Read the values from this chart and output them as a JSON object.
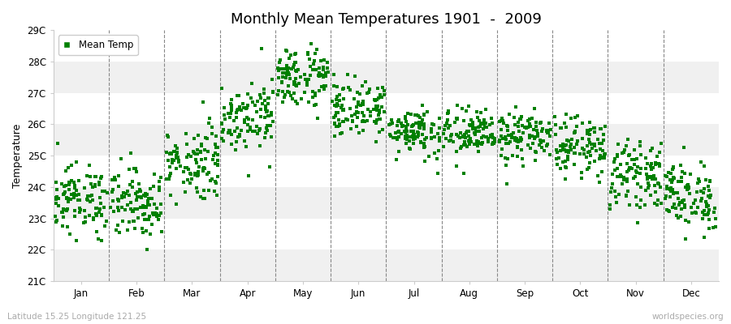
{
  "title": "Monthly Mean Temperatures 1901  -  2009",
  "ylabel": "Temperature",
  "xlabel_bottom": "Latitude 15.25 Longitude 121.25",
  "watermark": "worldspecies.org",
  "legend_label": "Mean Temp",
  "marker_color": "#008000",
  "background_color": "#ffffff",
  "band_colors": [
    "#f0f0f0",
    "#ffffff"
  ],
  "ylim": [
    21,
    29
  ],
  "yticks": [
    21,
    22,
    23,
    24,
    25,
    26,
    27,
    28,
    29
  ],
  "ytick_labels": [
    "21C",
    "22C",
    "23C",
    "24C",
    "25C",
    "26C",
    "27C",
    "28C",
    "29C"
  ],
  "months": [
    "Jan",
    "Feb",
    "Mar",
    "Apr",
    "May",
    "Jun",
    "Jul",
    "Aug",
    "Sep",
    "Oct",
    "Nov",
    "Dec"
  ],
  "n_years": 109,
  "monthly_mean": [
    23.6,
    23.5,
    24.8,
    26.3,
    27.5,
    26.5,
    25.8,
    25.7,
    25.6,
    25.3,
    24.4,
    23.7
  ],
  "monthly_std": [
    0.55,
    0.55,
    0.6,
    0.55,
    0.5,
    0.45,
    0.4,
    0.4,
    0.4,
    0.45,
    0.5,
    0.55
  ]
}
